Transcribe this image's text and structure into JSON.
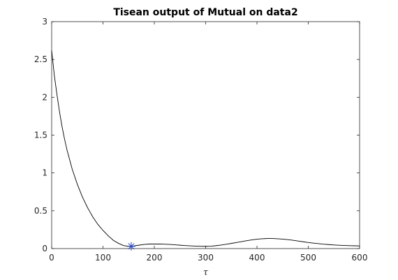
{
  "chart_data": {
    "type": "line",
    "title": "Tisean output of Mutual on data2",
    "xlabel": "τ",
    "ylabel": "",
    "xlim": [
      0,
      600
    ],
    "ylim": [
      0,
      3
    ],
    "xticks": [
      0,
      100,
      200,
      300,
      400,
      500,
      600
    ],
    "yticks": [
      0,
      0.5,
      1,
      1.5,
      2,
      2.5,
      3
    ],
    "xtick_labels": [
      "0",
      "100",
      "200",
      "300",
      "400",
      "500",
      "600"
    ],
    "ytick_labels": [
      "0",
      "0.5",
      "1",
      "1.5",
      "2",
      "2.5",
      "3"
    ],
    "grid": false,
    "series": [
      {
        "color": "#000000",
        "x": [
          0,
          5,
          10,
          15,
          20,
          25,
          30,
          40,
          50,
          60,
          70,
          80,
          90,
          100,
          110,
          120,
          130,
          140,
          150,
          155,
          160,
          170,
          180,
          190,
          200,
          210,
          220,
          230,
          240,
          250,
          260,
          270,
          280,
          290,
          300,
          310,
          320,
          330,
          340,
          350,
          360,
          370,
          380,
          390,
          400,
          410,
          420,
          430,
          440,
          450,
          460,
          470,
          480,
          490,
          500,
          510,
          520,
          530,
          540,
          550,
          560,
          570,
          580,
          590,
          600
        ],
        "y": [
          2.62,
          2.3,
          2.05,
          1.82,
          1.62,
          1.45,
          1.3,
          1.05,
          0.85,
          0.68,
          0.54,
          0.42,
          0.32,
          0.24,
          0.17,
          0.11,
          0.07,
          0.04,
          0.03,
          0.03,
          0.035,
          0.045,
          0.055,
          0.06,
          0.06,
          0.06,
          0.058,
          0.055,
          0.05,
          0.045,
          0.04,
          0.036,
          0.033,
          0.031,
          0.03,
          0.032,
          0.038,
          0.047,
          0.057,
          0.068,
          0.08,
          0.092,
          0.104,
          0.115,
          0.124,
          0.13,
          0.133,
          0.133,
          0.13,
          0.125,
          0.118,
          0.11,
          0.1,
          0.09,
          0.08,
          0.072,
          0.065,
          0.058,
          0.053,
          0.048,
          0.044,
          0.041,
          0.039,
          0.037,
          0.035
        ]
      }
    ],
    "marker": {
      "x": 155,
      "y": 0.03,
      "symbol": "star",
      "color": "#1f3fbf"
    }
  }
}
